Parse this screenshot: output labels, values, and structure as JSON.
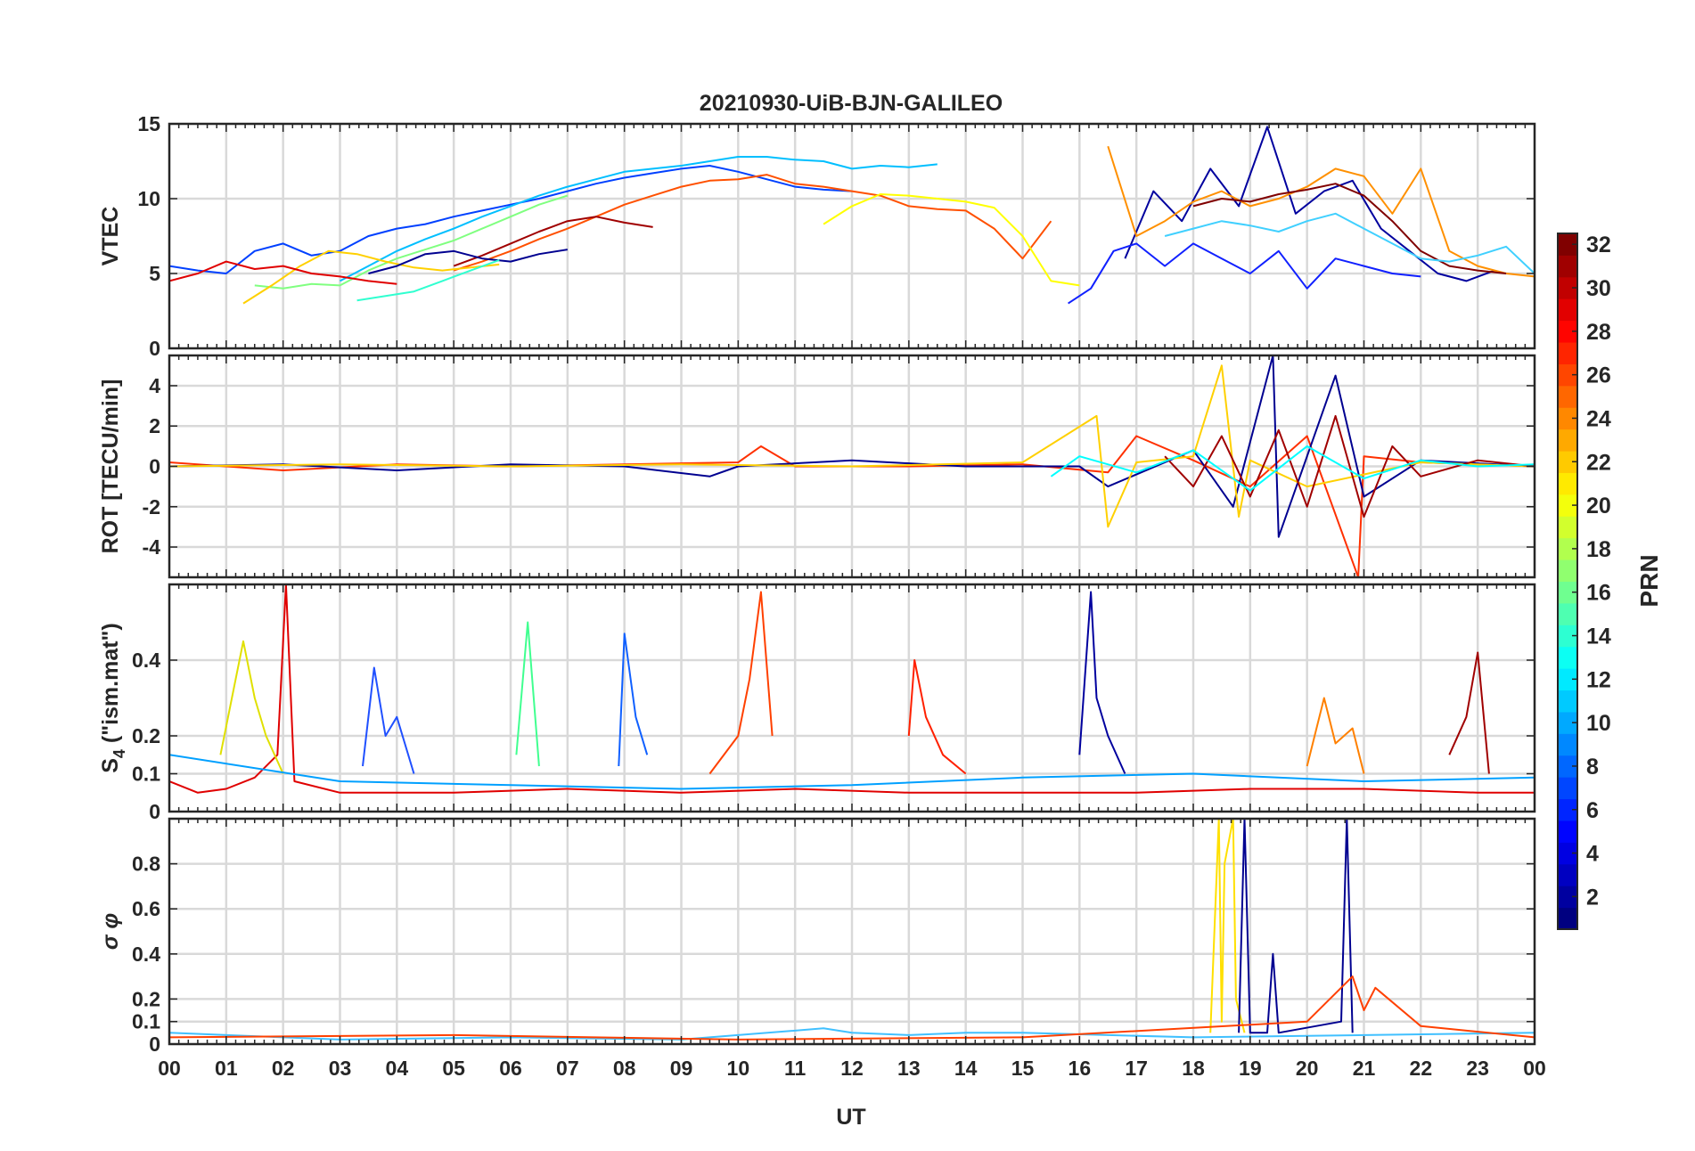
{
  "figure": {
    "title": "20210930-UiB-BJN-GALILEO",
    "xlabel": "UT"
  },
  "chart_data": [
    {
      "type": "line",
      "panel": "vtec",
      "ylabel": "VTEC",
      "ylim": [
        0,
        15
      ],
      "yticks": [
        0,
        5,
        10,
        15
      ],
      "xlim": [
        0,
        24
      ],
      "series": [
        {
          "color": "#0040ff",
          "x": [
            0,
            0.5,
            1,
            1.5,
            2,
            2.5,
            3,
            3.5,
            4,
            4.5,
            5,
            5.5,
            6,
            6.5,
            7,
            7.5,
            8,
            8.5,
            9,
            9.5,
            10,
            10.5,
            11,
            11.5,
            12
          ],
          "y": [
            5.5,
            5.2,
            5.0,
            6.5,
            7.0,
            6.2,
            6.5,
            7.5,
            8.0,
            8.3,
            8.8,
            9.2,
            9.6,
            10.0,
            10.5,
            11.0,
            11.4,
            11.7,
            12.0,
            12.2,
            11.8,
            11.3,
            10.8,
            10.6,
            10.5
          ]
        },
        {
          "color": "#00bfff",
          "x": [
            3,
            3.5,
            4,
            4.5,
            5,
            5.5,
            6,
            6.5,
            7,
            7.5,
            8,
            8.5,
            9,
            9.5,
            10,
            10.5,
            11,
            11.5,
            12,
            12.5,
            13,
            13.5
          ],
          "y": [
            4.5,
            5.5,
            6.5,
            7.3,
            8.0,
            8.8,
            9.5,
            10.2,
            10.8,
            11.3,
            11.8,
            12.0,
            12.2,
            12.5,
            12.8,
            12.8,
            12.6,
            12.5,
            12.0,
            12.2,
            12.1,
            12.3
          ]
        },
        {
          "color": "#ff5000",
          "x": [
            5,
            5.5,
            6,
            6.5,
            7,
            7.5,
            8,
            8.5,
            9,
            9.5,
            10,
            10.5,
            11,
            11.5,
            12,
            12.5,
            13,
            13.5,
            14,
            14.5,
            15,
            15.5
          ],
          "y": [
            5.2,
            5.8,
            6.5,
            7.3,
            8.0,
            8.8,
            9.6,
            10.2,
            10.8,
            11.2,
            11.3,
            11.6,
            11.0,
            10.8,
            10.5,
            10.2,
            9.5,
            9.3,
            9.2,
            8.0,
            6.0,
            8.5
          ]
        },
        {
          "color": "#a00000",
          "x": [
            5,
            5.5,
            6,
            6.5,
            7,
            7.5,
            8,
            8.5
          ],
          "y": [
            5.5,
            6.2,
            7.0,
            7.8,
            8.5,
            8.8,
            8.4,
            8.1
          ]
        },
        {
          "color": "#80ff80",
          "x": [
            1.5,
            2,
            2.5,
            3,
            3.5,
            4,
            4.5,
            5,
            5.5,
            6,
            6.5,
            7
          ],
          "y": [
            4.2,
            4.0,
            4.3,
            4.2,
            5.2,
            6.0,
            6.6,
            7.2,
            8.0,
            8.8,
            9.6,
            10.2
          ]
        },
        {
          "color": "#ffd000",
          "x": [
            1.3,
            1.8,
            2.3,
            2.8,
            3.3,
            3.8,
            4.3,
            4.8,
            5.3,
            5.8
          ],
          "y": [
            3.0,
            4.2,
            5.5,
            6.5,
            6.3,
            5.8,
            5.4,
            5.2,
            5.4,
            5.6
          ]
        },
        {
          "color": "#000090",
          "x": [
            3.5,
            4,
            4.5,
            5,
            5.5,
            6,
            6.5,
            7
          ],
          "y": [
            5.0,
            5.5,
            6.3,
            6.5,
            6.0,
            5.8,
            6.3,
            6.6
          ]
        },
        {
          "color": "#e00000",
          "x": [
            0,
            0.5,
            1,
            1.5,
            2,
            2.5,
            3,
            3.5,
            4
          ],
          "y": [
            4.5,
            5.0,
            5.8,
            5.3,
            5.5,
            5.0,
            4.8,
            4.5,
            4.3
          ]
        },
        {
          "color": "#30ffd0",
          "x": [
            3.3,
            3.8,
            4.3,
            4.8,
            5.3,
            5.8
          ],
          "y": [
            3.2,
            3.5,
            3.8,
            4.5,
            5.2,
            5.9
          ]
        },
        {
          "color": "#ffff00",
          "x": [
            11.5,
            12,
            12.5,
            13,
            13.5,
            14,
            14.5,
            15,
            15.5,
            16
          ],
          "y": [
            8.3,
            9.5,
            10.3,
            10.2,
            10.0,
            9.8,
            9.4,
            7.5,
            4.5,
            4.2
          ]
        },
        {
          "color": "#00009e",
          "x": [
            16.8,
            17.3,
            17.8,
            18.3,
            18.8,
            19.3,
            19.8,
            20.3,
            20.8,
            21.3,
            21.8,
            22.3,
            22.8,
            23.3
          ],
          "y": [
            6.0,
            10.5,
            8.5,
            12.0,
            9.5,
            14.8,
            9.0,
            10.5,
            11.2,
            8.0,
            6.5,
            5.0,
            4.5,
            5.2
          ]
        },
        {
          "color": "#ff9000",
          "x": [
            16.5,
            17,
            17.5,
            18,
            18.5,
            19,
            19.5,
            20,
            20.5,
            21,
            21.5,
            22,
            22.5,
            23,
            23.5,
            24
          ],
          "y": [
            13.5,
            7.5,
            8.5,
            9.8,
            10.5,
            9.5,
            10.0,
            10.8,
            12.0,
            11.5,
            9.0,
            12.0,
            6.5,
            5.5,
            5.0,
            4.8
          ]
        },
        {
          "color": "#1020ff",
          "x": [
            15.8,
            16.2,
            16.6,
            17,
            17.5,
            18,
            18.5,
            19,
            19.5,
            20,
            20.5,
            21,
            21.5,
            22
          ],
          "y": [
            3.0,
            4.0,
            6.5,
            7.0,
            5.5,
            7.0,
            6.0,
            5.0,
            6.5,
            4.0,
            6.0,
            5.5,
            5.0,
            4.8
          ]
        },
        {
          "color": "#800000",
          "x": [
            18,
            18.5,
            19,
            19.5,
            20,
            20.5,
            21,
            21.5,
            22,
            22.5,
            23,
            23.5
          ],
          "y": [
            9.5,
            10.0,
            9.8,
            10.3,
            10.6,
            11.0,
            10.2,
            8.5,
            6.5,
            5.5,
            5.2,
            5.0
          ]
        },
        {
          "color": "#40d0ff",
          "x": [
            17.5,
            18,
            18.5,
            19,
            19.5,
            20,
            20.5,
            21,
            21.5,
            22,
            22.5,
            23,
            23.5,
            24
          ],
          "y": [
            7.5,
            8.0,
            8.5,
            8.2,
            7.8,
            8.5,
            9.0,
            8.0,
            7.0,
            6.0,
            5.8,
            6.2,
            6.8,
            5.0
          ]
        }
      ]
    },
    {
      "type": "line",
      "panel": "rot",
      "ylabel": "ROT [TECU/min]",
      "ylim": [
        -5.5,
        5.5
      ],
      "yticks": [
        -4,
        -2,
        0,
        2,
        4
      ],
      "xlim": [
        0,
        24
      ],
      "series": [
        {
          "color": "#ff3000",
          "x": [
            0,
            2,
            4,
            6,
            8,
            10,
            10.4,
            11,
            13,
            15,
            16.5,
            17,
            18,
            19,
            20,
            20.9,
            21,
            22,
            24
          ],
          "y": [
            0.2,
            -0.2,
            0.1,
            0.0,
            0.1,
            0.2,
            1.0,
            0.0,
            0.0,
            0.1,
            -0.3,
            1.5,
            0.3,
            -1.0,
            1.5,
            -5.5,
            0.5,
            0.2,
            0.0
          ]
        },
        {
          "color": "#000090",
          "x": [
            0,
            2,
            4,
            6,
            8,
            9.5,
            10,
            12,
            14,
            16,
            16.5,
            18,
            18.7,
            19.4,
            19.5,
            20.5,
            21,
            22,
            24
          ],
          "y": [
            0.0,
            0.1,
            -0.2,
            0.1,
            0.0,
            -0.5,
            0.0,
            0.3,
            0.0,
            0.0,
            -1.0,
            0.8,
            -2.0,
            5.5,
            -3.5,
            4.5,
            -1.5,
            0.3,
            0.0
          ]
        },
        {
          "color": "#ffd000",
          "x": [
            0,
            3,
            6,
            9,
            12,
            15,
            16.3,
            16.5,
            17,
            18,
            18.5,
            18.8,
            19,
            20,
            22,
            24
          ],
          "y": [
            0.0,
            0.1,
            0.0,
            0.1,
            0.0,
            0.2,
            2.5,
            -3.0,
            0.2,
            0.5,
            5.0,
            -2.5,
            0.3,
            -1.0,
            0.2,
            0.0
          ]
        },
        {
          "color": "#a00000",
          "x": [
            17.5,
            18,
            18.5,
            19,
            19.5,
            20,
            20.5,
            21,
            21.5,
            22,
            23,
            24
          ],
          "y": [
            0.5,
            -1.0,
            1.5,
            -1.5,
            1.8,
            -2.0,
            2.5,
            -2.5,
            1.0,
            -0.5,
            0.3,
            0.0
          ]
        },
        {
          "color": "#00ffff",
          "x": [
            15.5,
            16,
            17,
            18,
            19,
            20,
            21,
            22,
            23,
            24
          ],
          "y": [
            -0.5,
            0.5,
            -0.3,
            0.8,
            -1.2,
            1.0,
            -0.6,
            0.3,
            0.0,
            0.1
          ]
        }
      ]
    },
    {
      "type": "line",
      "panel": "s4",
      "ylabel_main": "S",
      "ylabel_sub": "4",
      "ylabel_rest": " (\"ism.mat\")",
      "ylim": [
        0,
        0.6
      ],
      "yticks": [
        0,
        0.1,
        0.2,
        0.4
      ],
      "xlim": [
        0,
        24
      ],
      "series": [
        {
          "color": "#e00000",
          "x": [
            0,
            0.5,
            1,
            1.5,
            1.9,
            2.05,
            2.2,
            3,
            5,
            7,
            9,
            11,
            13,
            15,
            17,
            19,
            21,
            23,
            24
          ],
          "y": [
            0.08,
            0.05,
            0.06,
            0.09,
            0.15,
            0.6,
            0.08,
            0.05,
            0.05,
            0.06,
            0.05,
            0.06,
            0.05,
            0.05,
            0.05,
            0.06,
            0.06,
            0.05,
            0.05
          ]
        },
        {
          "color": "#e0e000",
          "x": [
            0.9,
            1.1,
            1.3,
            1.5,
            1.7,
            2.0
          ],
          "y": [
            0.15,
            0.3,
            0.45,
            0.3,
            0.2,
            0.1
          ]
        },
        {
          "color": "#2050ff",
          "x": [
            3.4,
            3.6,
            3.8,
            4.0,
            4.3
          ],
          "y": [
            0.12,
            0.38,
            0.2,
            0.25,
            0.1
          ]
        },
        {
          "color": "#40ff90",
          "x": [
            6.1,
            6.3,
            6.5
          ],
          "y": [
            0.15,
            0.5,
            0.12
          ]
        },
        {
          "color": "#1060ff",
          "x": [
            7.9,
            8.0,
            8.2,
            8.4
          ],
          "y": [
            0.12,
            0.47,
            0.25,
            0.15
          ]
        },
        {
          "color": "#ff4000",
          "x": [
            9.5,
            10.0,
            10.2,
            10.4,
            10.6
          ],
          "y": [
            0.1,
            0.2,
            0.35,
            0.58,
            0.2
          ]
        },
        {
          "color": "#ff2000",
          "x": [
            13.0,
            13.1,
            13.3,
            13.6,
            14.0
          ],
          "y": [
            0.2,
            0.4,
            0.25,
            0.15,
            0.1
          ]
        },
        {
          "color": "#00009e",
          "x": [
            16.0,
            16.2,
            16.3,
            16.5,
            16.8
          ],
          "y": [
            0.15,
            0.58,
            0.3,
            0.2,
            0.1
          ]
        },
        {
          "color": "#ff8000",
          "x": [
            20.0,
            20.3,
            20.5,
            20.8,
            21.0
          ],
          "y": [
            0.12,
            0.3,
            0.18,
            0.22,
            0.1
          ]
        },
        {
          "color": "#a00000",
          "x": [
            22.5,
            22.8,
            23.0,
            23.2
          ],
          "y": [
            0.15,
            0.25,
            0.42,
            0.1
          ]
        },
        {
          "color": "#00a0ff",
          "x": [
            0,
            3,
            6,
            9,
            12,
            15,
            18,
            21,
            24
          ],
          "y": [
            0.15,
            0.08,
            0.07,
            0.06,
            0.07,
            0.09,
            0.1,
            0.08,
            0.09
          ]
        }
      ]
    },
    {
      "type": "line",
      "panel": "sigma_phi",
      "ylabel": "σ φ",
      "ylim": [
        0,
        1
      ],
      "yticks": [
        0,
        0.1,
        0.2,
        0.4,
        0.6,
        0.8
      ],
      "xlim": [
        0,
        24
      ],
      "series": [
        {
          "color": "#40c0ff",
          "x": [
            0,
            3,
            6,
            9,
            11.5,
            12,
            13,
            14,
            15,
            18,
            21,
            24
          ],
          "y": [
            0.05,
            0.02,
            0.03,
            0.02,
            0.07,
            0.05,
            0.04,
            0.05,
            0.05,
            0.03,
            0.04,
            0.05
          ]
        },
        {
          "color": "#ffe000",
          "x": [
            18.3,
            18.45,
            18.5,
            18.55,
            18.7,
            18.75,
            18.9
          ],
          "y": [
            0.05,
            1.0,
            0.1,
            0.8,
            1.0,
            0.2,
            0.05
          ]
        },
        {
          "color": "#000090",
          "x": [
            18.8,
            18.9,
            19.0,
            19.3,
            19.4,
            19.5,
            20.6,
            20.7,
            20.8
          ],
          "y": [
            0.05,
            1.0,
            0.05,
            0.05,
            0.4,
            0.05,
            0.1,
            1.0,
            0.05
          ]
        },
        {
          "color": "#ff4000",
          "x": [
            0,
            5,
            10,
            15,
            20,
            20.8,
            21.0,
            21.2,
            22,
            24
          ],
          "y": [
            0.03,
            0.04,
            0.02,
            0.03,
            0.1,
            0.3,
            0.15,
            0.25,
            0.08,
            0.03
          ]
        }
      ]
    }
  ],
  "xticks": [
    "00",
    "01",
    "02",
    "03",
    "04",
    "05",
    "06",
    "07",
    "08",
    "09",
    "10",
    "11",
    "12",
    "13",
    "14",
    "15",
    "16",
    "17",
    "18",
    "19",
    "20",
    "21",
    "22",
    "23",
    "00"
  ],
  "colorbar": {
    "label": "PRN",
    "range": [
      1,
      32
    ],
    "ticks": [
      2,
      4,
      6,
      8,
      10,
      12,
      14,
      16,
      18,
      20,
      22,
      24,
      26,
      28,
      30,
      32
    ],
    "colormap": "jet"
  }
}
